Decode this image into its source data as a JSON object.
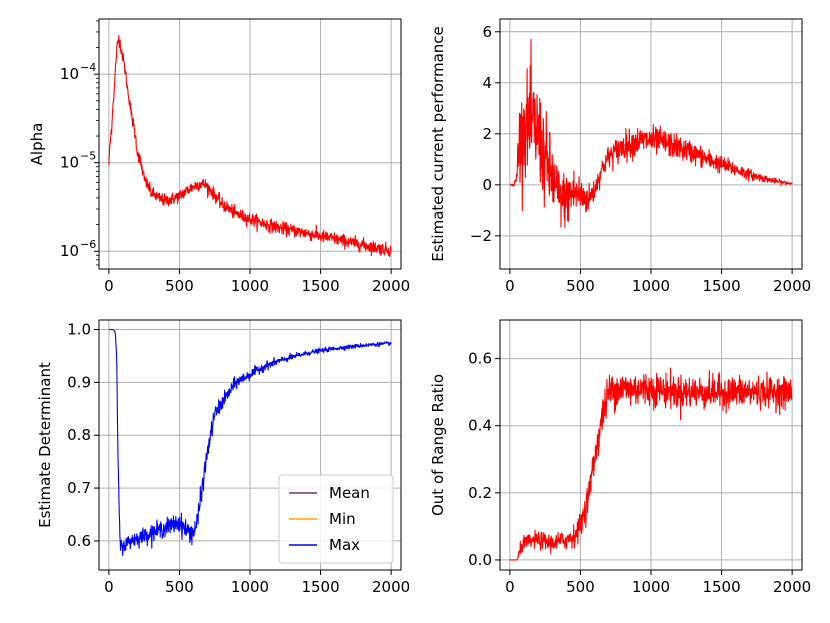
{
  "chart_data": [
    {
      "type": "line",
      "id": "alpha",
      "ylabel": "Alpha",
      "xlabel": "",
      "yscale": "log",
      "xlim": [
        -70,
        2070
      ],
      "ylim": [
        6.3e-07,
        0.00042
      ],
      "x_ticks": [
        0,
        500,
        1000,
        1500,
        2000
      ],
      "x_tick_labels": [
        "0",
        "500",
        "1000",
        "1500",
        "2000"
      ],
      "y_ticks": [
        1e-06,
        1e-05,
        0.0001
      ],
      "y_tick_labels": [
        {
          "base": "10",
          "exp": "−6"
        },
        {
          "base": "10",
          "exp": "−5"
        },
        {
          "base": "10",
          "exp": "−4"
        }
      ],
      "grid": true,
      "series": [
        {
          "name": "alpha",
          "color": "#ff0000",
          "noise": 0.035,
          "log": true,
          "x": [
            0,
            20,
            40,
            60,
            70,
            80,
            100,
            130,
            160,
            200,
            250,
            300,
            350,
            400,
            450,
            500,
            550,
            600,
            650,
            680,
            700,
            750,
            800,
            900,
            1000,
            1100,
            1200,
            1300,
            1400,
            1500,
            1600,
            1700,
            1800,
            1900,
            2000
          ],
          "y": [
            9.5e-06,
            2.5e-05,
            7e-05,
            0.00021,
            0.00026,
            0.00022,
            0.00015,
            7e-05,
            3.4e-05,
            1.35e-05,
            6.5e-06,
            4.6e-06,
            4e-06,
            3.7e-06,
            3.9e-06,
            4.2e-06,
            4.8e-06,
            5.4e-06,
            5.8e-06,
            5.7e-06,
            5.3e-06,
            4.3e-06,
            3.4e-06,
            2.65e-06,
            2.3e-06,
            2.05e-06,
            1.85e-06,
            1.72e-06,
            1.6e-06,
            1.48e-06,
            1.38e-06,
            1.27e-06,
            1.18e-06,
            1.09e-06,
            1.02e-06
          ]
        }
      ],
      "legend": []
    },
    {
      "type": "line",
      "id": "performance",
      "ylabel": "Estimated current performance",
      "xlabel": "",
      "yscale": "linear",
      "xlim": [
        -70,
        2070
      ],
      "ylim": [
        -3.3,
        6.5
      ],
      "x_ticks": [
        0,
        500,
        1000,
        1500,
        2000
      ],
      "x_tick_labels": [
        "0",
        "500",
        "1000",
        "1500",
        "2000"
      ],
      "y_ticks": [
        -2,
        0,
        2,
        4,
        6
      ],
      "y_tick_labels": [
        "−2",
        "0",
        "2",
        "4",
        "6"
      ],
      "grid": true,
      "series": [
        {
          "name": "performance",
          "color": "#ff0000",
          "x": [
            0,
            30,
            50,
            60,
            80,
            100,
            150,
            200,
            250,
            300,
            350,
            400,
            450,
            500,
            550,
            600,
            650,
            700,
            800,
            900,
            1000,
            1100,
            1200,
            1300,
            1400,
            1500,
            1600,
            1700,
            1800,
            1900,
            2000
          ],
          "y": [
            0,
            0,
            0.3,
            1.5,
            2.0,
            2.3,
            2.4,
            2.0,
            1.0,
            0.2,
            -0.5,
            -0.6,
            -0.3,
            -0.4,
            -0.6,
            -0.2,
            0.6,
            1.1,
            1.5,
            1.7,
            1.75,
            1.65,
            1.45,
            1.25,
            1.0,
            0.8,
            0.6,
            0.4,
            0.25,
            0.12,
            0.05
          ],
          "noise_x": [
            0,
            40,
            60,
            150,
            250,
            350,
            450,
            550,
            650,
            800,
            1000,
            1200,
            1400,
            1600,
            1800,
            2000
          ],
          "noise": [
            0,
            0.1,
            1.2,
            1.9,
            1.6,
            1.0,
            0.9,
            0.5,
            0.35,
            0.5,
            0.5,
            0.42,
            0.35,
            0.25,
            0.12,
            0.05
          ]
        }
      ],
      "legend": []
    },
    {
      "type": "line",
      "id": "determinant",
      "ylabel": "Estimate Determinant",
      "xlabel": "",
      "yscale": "linear",
      "xlim": [
        -70,
        2070
      ],
      "ylim": [
        0.545,
        1.018
      ],
      "x_ticks": [
        0,
        500,
        1000,
        1500,
        2000
      ],
      "x_tick_labels": [
        "0",
        "500",
        "1000",
        "1500",
        "2000"
      ],
      "y_ticks": [
        0.6,
        0.7,
        0.8,
        0.9,
        1.0
      ],
      "y_tick_labels": [
        "0.6",
        "0.7",
        "0.8",
        "0.9",
        "1.0"
      ],
      "grid": true,
      "series": [
        {
          "name": "Mean",
          "color": "#7b2d8e",
          "noise": 0,
          "x": [
            0,
            2000
          ],
          "y": [
            1.0,
            1.0
          ],
          "hidden": true
        },
        {
          "name": "Min",
          "color": "#ffa500",
          "noise": 0,
          "x": [
            0,
            2000
          ],
          "y": [
            1.0,
            1.0
          ],
          "hidden": true
        },
        {
          "name": "Max",
          "color": "#0000ff",
          "x": [
            0,
            30,
            45,
            55,
            65,
            80,
            100,
            150,
            200,
            250,
            300,
            350,
            400,
            450,
            500,
            550,
            600,
            630,
            660,
            700,
            750,
            800,
            850,
            900,
            1000,
            1100,
            1200,
            1300,
            1400,
            1500,
            1600,
            1700,
            1800,
            1900,
            2000
          ],
          "y": [
            1.0,
            1.0,
            0.995,
            0.95,
            0.75,
            0.59,
            0.59,
            0.6,
            0.605,
            0.61,
            0.615,
            0.62,
            0.625,
            0.63,
            0.635,
            0.62,
            0.615,
            0.64,
            0.7,
            0.77,
            0.84,
            0.86,
            0.88,
            0.9,
            0.915,
            0.93,
            0.94,
            0.948,
            0.955,
            0.96,
            0.964,
            0.967,
            0.97,
            0.972,
            0.974
          ],
          "noise_x": [
            0,
            60,
            80,
            400,
            600,
            650,
            800,
            1000,
            1400,
            2000
          ],
          "noise": [
            0,
            0,
            0.012,
            0.015,
            0.018,
            0.018,
            0.012,
            0.008,
            0.004,
            0.003
          ]
        }
      ],
      "legend": [
        "Mean",
        "Min",
        "Max"
      ],
      "legend_position": "lower-right"
    },
    {
      "type": "line",
      "id": "out-of-range",
      "ylabel": "Out of Range Ratio",
      "xlabel": "",
      "yscale": "linear",
      "xlim": [
        -70,
        2070
      ],
      "ylim": [
        -0.03,
        0.715
      ],
      "x_ticks": [
        0,
        500,
        1000,
        1500,
        2000
      ],
      "x_tick_labels": [
        "0",
        "500",
        "1000",
        "1500",
        "2000"
      ],
      "y_ticks": [
        0.0,
        0.2,
        0.4,
        0.6
      ],
      "y_tick_labels": [
        "0.0",
        "0.2",
        "0.4",
        "0.6"
      ],
      "grid": true,
      "series": [
        {
          "name": "out of range ratio",
          "color": "#ff0000",
          "x": [
            0,
            50,
            60,
            80,
            100,
            200,
            300,
            400,
            450,
            500,
            550,
            600,
            650,
            700,
            750,
            800,
            1000,
            1200,
            1400,
            1600,
            1800,
            2000
          ],
          "y": [
            0,
            0,
            0.01,
            0.04,
            0.05,
            0.06,
            0.05,
            0.06,
            0.07,
            0.1,
            0.18,
            0.3,
            0.42,
            0.5,
            0.51,
            0.51,
            0.51,
            0.5,
            0.5,
            0.5,
            0.5,
            0.5
          ],
          "noise_x": [
            0,
            50,
            80,
            400,
            600,
            700,
            1000,
            2000
          ],
          "noise": [
            0,
            0,
            0.02,
            0.025,
            0.04,
            0.05,
            0.045,
            0.04
          ]
        }
      ],
      "legend": []
    }
  ]
}
